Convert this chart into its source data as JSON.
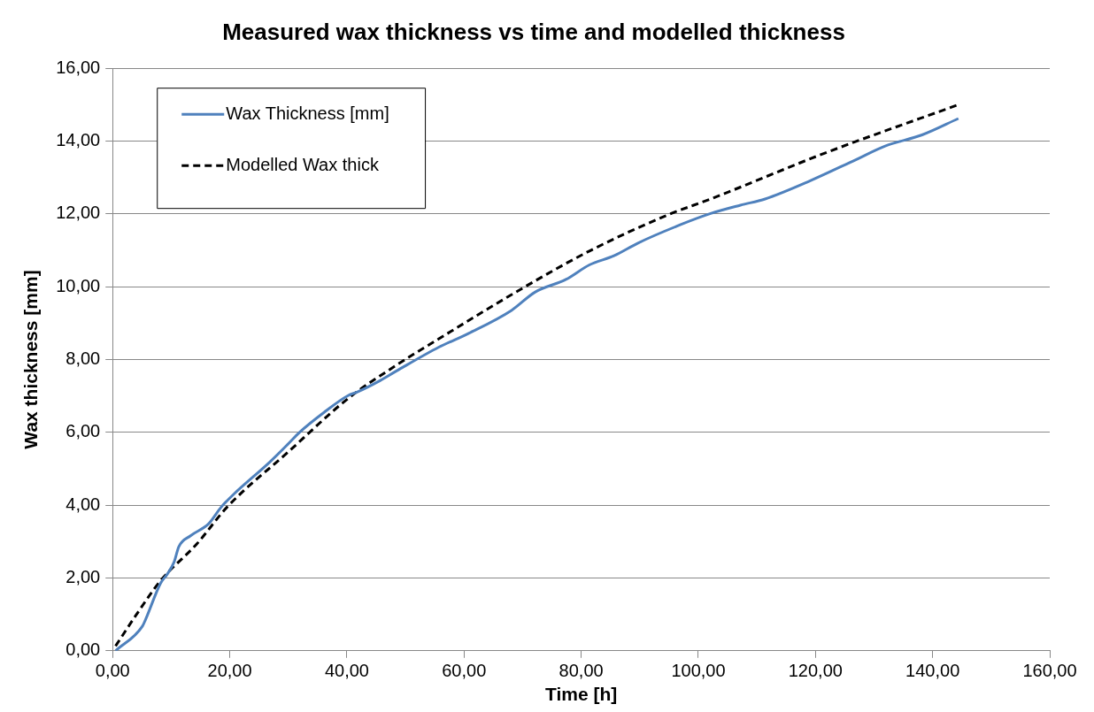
{
  "chart_data": {
    "type": "line",
    "title": "Measured wax thickness vs time and modelled thickness",
    "xlabel": "Time [h]",
    "ylabel": "Wax thickness [mm]",
    "xlim": [
      0,
      160
    ],
    "ylim": [
      0,
      16
    ],
    "xticks": [
      {
        "value": 0,
        "label": "0,00"
      },
      {
        "value": 20,
        "label": "20,00"
      },
      {
        "value": 40,
        "label": "40,00"
      },
      {
        "value": 60,
        "label": "60,00"
      },
      {
        "value": 80,
        "label": "80,00"
      },
      {
        "value": 100,
        "label": "100,00"
      },
      {
        "value": 120,
        "label": "120,00"
      },
      {
        "value": 140,
        "label": "140,00"
      },
      {
        "value": 160,
        "label": "160,00"
      }
    ],
    "yticks": [
      {
        "value": 0,
        "label": "0,00"
      },
      {
        "value": 2,
        "label": "2,00"
      },
      {
        "value": 4,
        "label": "4,00"
      },
      {
        "value": 6,
        "label": "6,00"
      },
      {
        "value": 8,
        "label": "8,00"
      },
      {
        "value": 10,
        "label": "10,00"
      },
      {
        "value": 12,
        "label": "12,00"
      },
      {
        "value": 14,
        "label": "14,00"
      },
      {
        "value": 16,
        "label": "16,00"
      }
    ],
    "grid": "y",
    "legend": "top left",
    "marker": "none",
    "series": [
      {
        "name": "Wax Thickness [mm]",
        "color": "#4f81bd",
        "line_style": "solid",
        "x": [
          0.5,
          5.1,
          5.6,
          8.2,
          9.3,
          10.5,
          11.3,
          13.3,
          16.4,
          18.5,
          20.6,
          26.8,
          29.9,
          31.9,
          36.1,
          40.2,
          41.8,
          45.3,
          48.4,
          55.7,
          60.8,
          68.1,
          72.1,
          77.4,
          81.4,
          85.6,
          89.7,
          96.9,
          102.1,
          107.2,
          111.4,
          119.1,
          126.9,
          132,
          138.2,
          144.4
        ],
        "values": [
          0,
          0.68,
          0.85,
          1.86,
          2.1,
          2.44,
          2.86,
          3.16,
          3.49,
          3.94,
          4.29,
          5.18,
          5.67,
          6,
          6.55,
          7.01,
          7.11,
          7.39,
          7.68,
          8.34,
          8.72,
          9.35,
          9.85,
          10.2,
          10.6,
          10.85,
          11.2,
          11.7,
          12.01,
          12.24,
          12.41,
          12.91,
          13.49,
          13.87,
          14.17,
          14.62
        ]
      },
      {
        "name": "Modelled Wax thick",
        "color": "#000000",
        "line_style": "dashed",
        "x": [
          0.5,
          4,
          8.2,
          14.4,
          19.5,
          29.9,
          40.2,
          48.4,
          55.7,
          70.1,
          81.4,
          94.9,
          102.1,
          121.6,
          144.4
        ],
        "values": [
          0.13,
          0.98,
          1.93,
          2.94,
          3.94,
          5.45,
          6.93,
          7.84,
          8.57,
          9.97,
          10.98,
          11.98,
          12.41,
          13.67,
          15
        ]
      }
    ]
  }
}
